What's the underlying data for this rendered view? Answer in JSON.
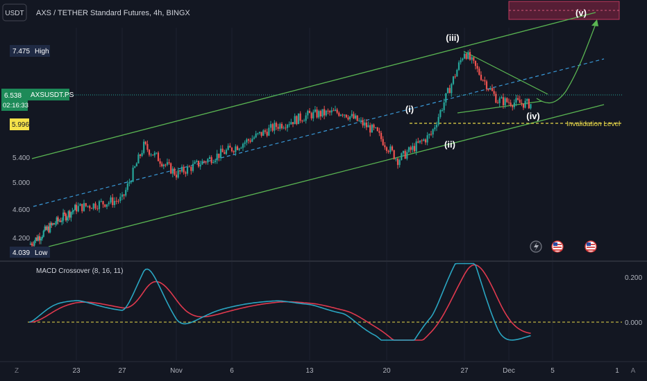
{
  "header": {
    "currency": "USDT",
    "symbol_title": "AXS / TETHER Standard Futures, 4h, BINGX"
  },
  "price_axis": {
    "ticks": [
      {
        "value": 5.4,
        "label": "5.400"
      },
      {
        "value": 5.0,
        "label": "5.000"
      },
      {
        "value": 4.6,
        "label": "4.600"
      },
      {
        "value": 4.2,
        "label": "4.200"
      }
    ],
    "high": {
      "value": 7.475,
      "label": "7.475",
      "tag": "High"
    },
    "low": {
      "value": 4.039,
      "label": "4.039",
      "tag": "Low"
    },
    "current": {
      "value": 6.538,
      "label": "6.538",
      "symbol": "AXSUSDT.PS",
      "countdown": "02:16:33"
    },
    "invalidation": {
      "value": 5.996,
      "label": "5.996",
      "text": "Invalidation Level"
    }
  },
  "time_axis": {
    "labels": [
      "23",
      "27",
      "Nov",
      "6",
      "13",
      "20",
      "27",
      "Dec",
      "5",
      "1"
    ],
    "left_icon": "Z",
    "right_icon": "A"
  },
  "waves": [
    "(i)",
    "(ii)",
    "(iii)",
    "(iv)",
    "(v)"
  ],
  "macd": {
    "title": "MACD Crossover (8, 16, 11)",
    "ticks": [
      {
        "value": 0.2,
        "label": "0.200"
      },
      {
        "value": 0.0,
        "label": "0.000"
      }
    ],
    "macd_color": "#2aa6c2",
    "signal_color": "#e0394e"
  },
  "colors": {
    "bull": "#26a69a",
    "bear": "#ef5350",
    "channel": "#5ab552",
    "midline": "#3a9ad9",
    "target_box": "#8e2446"
  },
  "event_icons": [
    "lightning-icon",
    "us-flag-icon",
    "us-flag-icon"
  ],
  "chart_data": {
    "type": "candlestick",
    "title": "AXS / TETHER Standard Futures, 4h, BINGX",
    "price_range": [
      4.039,
      7.475
    ],
    "approx_close_path": [
      {
        "x": "Oct 17",
        "y": 4.05
      },
      {
        "x": "Oct 20",
        "y": 4.4
      },
      {
        "x": "Oct 23",
        "y": 4.7
      },
      {
        "x": "Oct 27",
        "y": 4.85
      },
      {
        "x": "Oct 29",
        "y": 5.8
      },
      {
        "x": "Nov 1",
        "y": 5.3
      },
      {
        "x": "Nov 6",
        "y": 5.75
      },
      {
        "x": "Nov 10",
        "y": 6.15
      },
      {
        "x": "Nov 13",
        "y": 6.35
      },
      {
        "x": "Nov 16",
        "y": 6.4
      },
      {
        "x": "Nov 19",
        "y": 6.05
      },
      {
        "x": "Nov 21",
        "y": 5.55
      },
      {
        "x": "Nov 24",
        "y": 6.0
      },
      {
        "x": "Nov 27",
        "y": 7.475
      },
      {
        "x": "Nov 30",
        "y": 6.6
      },
      {
        "x": "Dec 3",
        "y": 6.538
      }
    ],
    "series": [
      {
        "name": "MACD Crossover (8, 16, 11)",
        "indicator": "MACD",
        "ylim": [
          -0.08,
          0.26
        ]
      }
    ]
  }
}
